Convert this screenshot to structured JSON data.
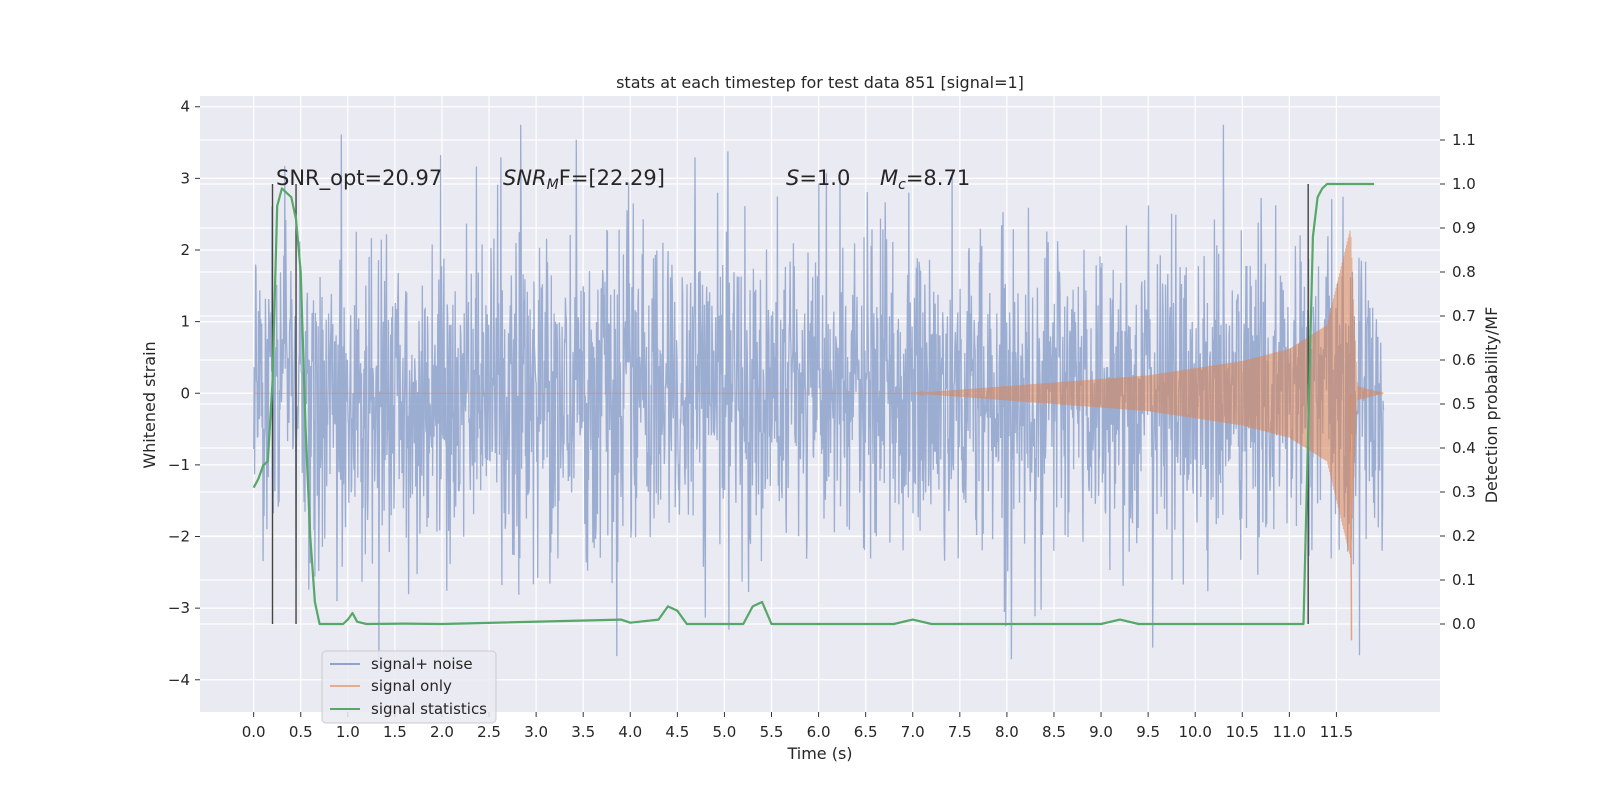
{
  "chart_data": {
    "type": "line",
    "title": "stats at each timestep for test data 851 [signal=1]",
    "xlabel": "Time (s)",
    "ylabel_left": "Whitened strain",
    "ylabel_right": "Detection probability/MF",
    "xlim": [
      -0.57,
      12.6
    ],
    "ylim_left": [
      -4.45,
      4.15
    ],
    "ylim_right": [
      -0.2,
      1.2
    ],
    "x_ticks": [
      "0.0",
      "0.5",
      "1.0",
      "1.5",
      "2.0",
      "2.5",
      "3.0",
      "3.5",
      "4.0",
      "4.5",
      "5.0",
      "5.5",
      "6.0",
      "6.5",
      "7.0",
      "7.5",
      "8.0",
      "8.5",
      "9.0",
      "9.5",
      "10.0",
      "10.5",
      "11.0",
      "11.5"
    ],
    "y_ticks_left": [
      "−4",
      "−3",
      "−2",
      "−1",
      "0",
      "1",
      "2",
      "3",
      "4"
    ],
    "y_ticks_right": [
      "0.0",
      "0.1",
      "0.2",
      "0.3",
      "0.4",
      "0.5",
      "0.6",
      "0.7",
      "0.8",
      "0.9",
      "1.0",
      "1.1"
    ],
    "grid": true,
    "legend_position": "lower-left",
    "annotations": {
      "snr_opt": "SNR_opt=20.97",
      "snr_mf_prefix": "SNR",
      "snr_mf_sub": "M",
      "snr_mf_suffix": "F=[22.29]",
      "s_prefix": "S",
      "s_suffix": "=1.0",
      "mc_prefix": "M",
      "mc_sub": "c",
      "mc_suffix": "=8.71"
    },
    "vertical_lines_x": [
      0.2,
      0.45,
      11.2
    ],
    "series": [
      {
        "name": "signal+ noise",
        "color": "#8ea2cc",
        "axis": "left",
        "x_range": [
          0.0,
          12.0
        ],
        "typical_peak_amplitude": 2.2,
        "max_value": 3.75,
        "min_value": -4.1
      },
      {
        "name": "signal only",
        "color": "#dd8452",
        "axis": "left",
        "x_range": [
          0.0,
          12.0
        ],
        "envelope": [
          {
            "x": 0.0,
            "amp": 0.0
          },
          {
            "x": 7.0,
            "amp": 0.0
          },
          {
            "x": 7.5,
            "amp": 0.05
          },
          {
            "x": 8.5,
            "amp": 0.15
          },
          {
            "x": 9.5,
            "amp": 0.25
          },
          {
            "x": 10.5,
            "amp": 0.45
          },
          {
            "x": 11.0,
            "amp": 0.62
          },
          {
            "x": 11.4,
            "amp": 0.95
          },
          {
            "x": 11.65,
            "amp": 2.3
          },
          {
            "x": 11.72,
            "amp": 0.1
          },
          {
            "x": 12.0,
            "amp": 0.0
          }
        ],
        "min_value": -3.45
      },
      {
        "name": "signal statistics",
        "color": "#55a868",
        "axis": "right",
        "points": [
          [
            0.0,
            0.31
          ],
          [
            0.05,
            0.33
          ],
          [
            0.1,
            0.36
          ],
          [
            0.15,
            0.37
          ],
          [
            0.2,
            0.55
          ],
          [
            0.25,
            0.95
          ],
          [
            0.3,
            0.99
          ],
          [
            0.35,
            0.98
          ],
          [
            0.4,
            0.97
          ],
          [
            0.45,
            0.92
          ],
          [
            0.5,
            0.8
          ],
          [
            0.55,
            0.45
          ],
          [
            0.6,
            0.2
          ],
          [
            0.65,
            0.05
          ],
          [
            0.7,
            0.0
          ],
          [
            0.95,
            0.0
          ],
          [
            1.0,
            0.01
          ],
          [
            1.05,
            0.025
          ],
          [
            1.1,
            0.005
          ],
          [
            1.2,
            0.0
          ],
          [
            1.6,
            0.001
          ],
          [
            2.0,
            0.0
          ],
          [
            3.9,
            0.01
          ],
          [
            4.0,
            0.003
          ],
          [
            4.3,
            0.01
          ],
          [
            4.4,
            0.04
          ],
          [
            4.5,
            0.03
          ],
          [
            4.6,
            0.0
          ],
          [
            5.2,
            0.0
          ],
          [
            5.3,
            0.04
          ],
          [
            5.4,
            0.05
          ],
          [
            5.5,
            0.0
          ],
          [
            6.8,
            0.0
          ],
          [
            7.0,
            0.01
          ],
          [
            7.2,
            0.0
          ],
          [
            9.0,
            0.0
          ],
          [
            9.2,
            0.01
          ],
          [
            9.4,
            0.0
          ],
          [
            10.0,
            0.0
          ],
          [
            11.0,
            0.0
          ],
          [
            11.15,
            0.0
          ],
          [
            11.25,
            0.88
          ],
          [
            11.3,
            0.97
          ],
          [
            11.35,
            0.99
          ],
          [
            11.4,
            1.0
          ],
          [
            11.9,
            1.0
          ]
        ]
      }
    ]
  }
}
